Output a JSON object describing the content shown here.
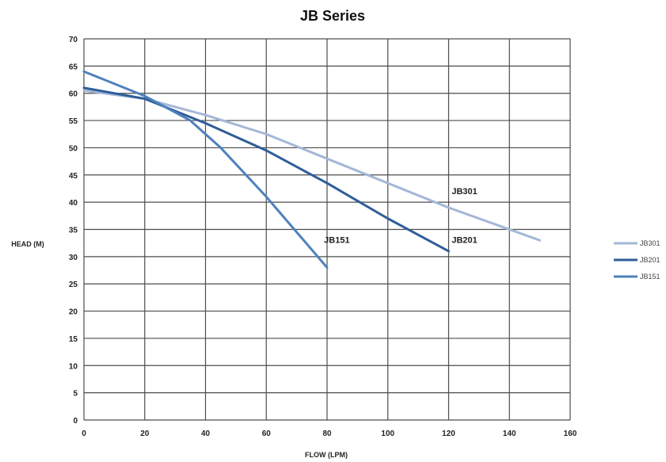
{
  "chart_data": {
    "type": "line",
    "title": "JB Series",
    "xlabel": "FLOW (LPM)",
    "ylabel": "HEAD (M)",
    "xlim": [
      0,
      160
    ],
    "ylim": [
      0,
      70
    ],
    "xticks": [
      "0",
      "20",
      "40",
      "60",
      "80",
      "100",
      "120",
      "140",
      "160"
    ],
    "yticks": [
      "0",
      "5",
      "10",
      "15",
      "20",
      "25",
      "30",
      "35",
      "40",
      "45",
      "50",
      "55",
      "60",
      "65",
      "70"
    ],
    "grid": true,
    "legend_position": "right",
    "series": [
      {
        "name": "JB301",
        "color": "#a3b7d6",
        "points": [
          [
            0,
            60.5
          ],
          [
            20,
            59
          ],
          [
            40,
            56
          ],
          [
            60,
            52.5
          ],
          [
            80,
            48
          ],
          [
            100,
            43.5
          ],
          [
            120,
            39
          ],
          [
            140,
            35
          ],
          [
            150,
            33
          ]
        ]
      },
      {
        "name": "JB201",
        "color": "#2f5d99",
        "points": [
          [
            0,
            61
          ],
          [
            20,
            59
          ],
          [
            40,
            54.5
          ],
          [
            60,
            49.5
          ],
          [
            80,
            43.5
          ],
          [
            100,
            37
          ],
          [
            120,
            31
          ]
        ]
      },
      {
        "name": "JB151",
        "color": "#4f81bd",
        "points": [
          [
            0,
            64
          ],
          [
            20,
            59.5
          ],
          [
            35,
            55
          ],
          [
            45,
            50
          ],
          [
            60,
            41
          ],
          [
            80,
            28
          ]
        ]
      }
    ],
    "annotations": [
      {
        "text": "JB301",
        "x": 121,
        "y": 41.5
      },
      {
        "text": "JB201",
        "x": 121,
        "y": 32.5
      },
      {
        "text": "JB151",
        "x": 79,
        "y": 32.5
      }
    ]
  }
}
